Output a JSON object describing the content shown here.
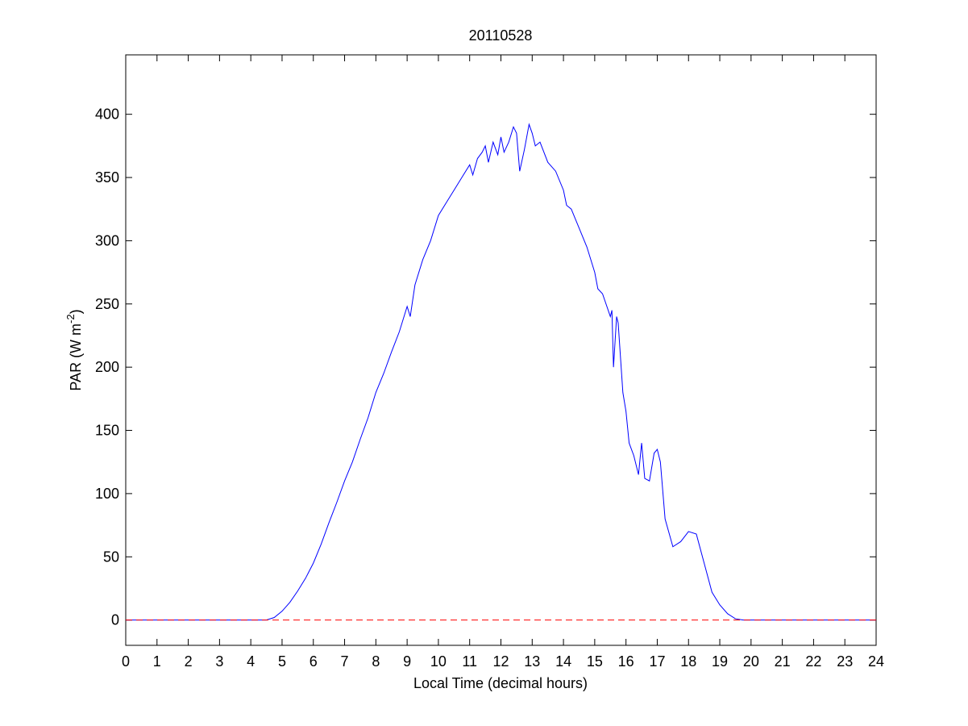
{
  "chart_data": {
    "type": "line",
    "title": "20110528",
    "xlabel": "Local Time (decimal hours)",
    "ylabel": {
      "text": "PAR (W m",
      "superscript": "-2",
      "suffix": ")"
    },
    "xlim": [
      0,
      24
    ],
    "ylim": [
      -20,
      447
    ],
    "xticks": [
      0,
      1,
      2,
      3,
      4,
      5,
      6,
      7,
      8,
      9,
      10,
      11,
      12,
      13,
      14,
      15,
      16,
      17,
      18,
      19,
      20,
      21,
      22,
      23,
      24
    ],
    "yticks": [
      0,
      50,
      100,
      150,
      200,
      250,
      300,
      350,
      400
    ],
    "grid": false,
    "reference_line": {
      "value": 0,
      "color": "#ff0000",
      "style": "dashed"
    },
    "series": [
      {
        "color": "#0000ff",
        "x": [
          0,
          1,
          2,
          3,
          4,
          4.5,
          4.75,
          5,
          5.25,
          5.5,
          5.75,
          6,
          6.25,
          6.5,
          6.75,
          7,
          7.25,
          7.5,
          7.75,
          8,
          8.25,
          8.5,
          8.75,
          9,
          9.1,
          9.25,
          9.5,
          9.75,
          10,
          10.25,
          10.5,
          10.75,
          11,
          11.1,
          11.25,
          11.4,
          11.5,
          11.6,
          11.75,
          11.9,
          12,
          12.1,
          12.25,
          12.4,
          12.5,
          12.6,
          12.75,
          12.9,
          13,
          13.1,
          13.25,
          13.5,
          13.75,
          14,
          14.1,
          14.25,
          14.5,
          14.75,
          15,
          15.1,
          15.25,
          15.5,
          15.55,
          15.6,
          15.7,
          15.75,
          15.9,
          16,
          16.1,
          16.25,
          16.4,
          16.5,
          16.6,
          16.75,
          16.9,
          17,
          17.1,
          17.25,
          17.5,
          17.75,
          18,
          18.25,
          18.5,
          18.75,
          19,
          19.25,
          19.5,
          19.75,
          20,
          21,
          22,
          23,
          24
        ],
        "values": [
          0,
          0,
          0,
          0,
          0,
          0,
          2,
          7,
          14,
          23,
          33,
          45,
          60,
          77,
          93,
          110,
          125,
          143,
          160,
          180,
          195,
          212,
          228,
          248,
          240,
          265,
          285,
          300,
          320,
          330,
          340,
          350,
          360,
          352,
          365,
          370,
          375,
          362,
          378,
          368,
          382,
          370,
          378,
          390,
          385,
          355,
          372,
          392,
          385,
          375,
          378,
          362,
          355,
          340,
          328,
          325,
          310,
          295,
          275,
          262,
          258,
          240,
          245,
          200,
          240,
          235,
          180,
          165,
          140,
          130,
          115,
          140,
          112,
          110,
          132,
          135,
          125,
          80,
          58,
          62,
          70,
          68,
          45,
          22,
          12,
          5,
          1,
          0,
          0,
          0,
          0,
          0,
          0
        ]
      }
    ]
  }
}
